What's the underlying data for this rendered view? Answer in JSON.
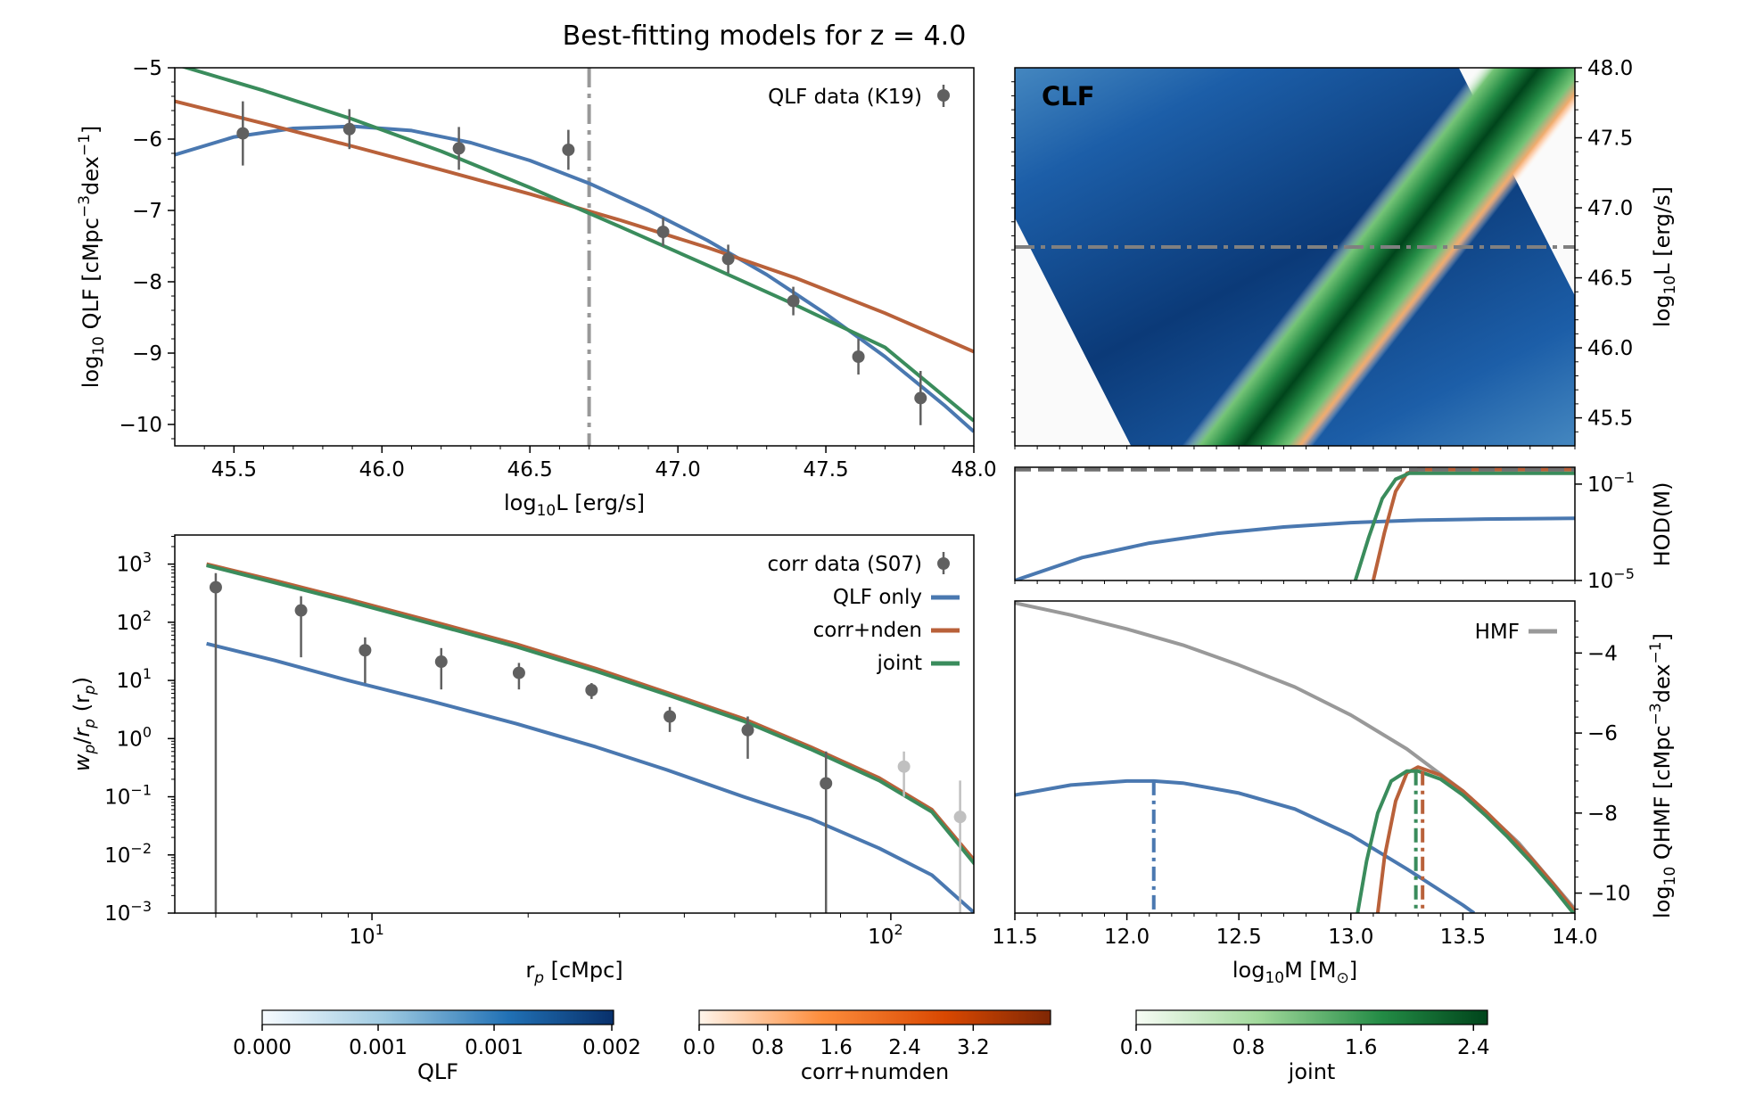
{
  "title": "Best-fitting models for z = 4.0",
  "colors": {
    "qlf_only": "#4a78b0",
    "corr_nden": "#b9613a",
    "joint": "#3a8c5c",
    "data": "#606060",
    "data_faint": "#c0c0c0",
    "hmf": "#999999",
    "ref_line": "#999999"
  },
  "chart_data": [
    {
      "id": "qlf",
      "type": "line",
      "xlabel": "log10L [erg/s]",
      "ylabel": "log10 QLF [cMpc^-3 dex^-1]",
      "xlim": [
        45.3,
        48.0
      ],
      "ylim": [
        -10.3,
        -5.0
      ],
      "xticks": [
        "45.5",
        "46.0",
        "46.5",
        "47.0",
        "47.5",
        "48.0"
      ],
      "yticks": [
        "−5",
        "−6",
        "−7",
        "−8",
        "−9",
        "−10"
      ],
      "vline": 46.7,
      "legend": [
        "QLF data (K19)"
      ],
      "data_points": [
        {
          "x": 45.53,
          "y": -5.92,
          "err": 0.45
        },
        {
          "x": 45.89,
          "y": -5.86,
          "err": 0.28
        },
        {
          "x": 46.26,
          "y": -6.13,
          "err": 0.3
        },
        {
          "x": 46.63,
          "y": -6.15,
          "err": 0.28
        },
        {
          "x": 46.95,
          "y": -7.3,
          "err": 0.2
        },
        {
          "x": 47.17,
          "y": -7.68,
          "err": 0.2
        },
        {
          "x": 47.39,
          "y": -8.27,
          "err": 0.2
        },
        {
          "x": 47.61,
          "y": -9.05,
          "err": 0.25
        },
        {
          "x": 47.82,
          "y": -9.63,
          "err": 0.38
        }
      ],
      "series": [
        {
          "key": "qlf_only",
          "x": [
            45.3,
            45.5,
            45.7,
            45.9,
            46.1,
            46.3,
            46.5,
            46.7,
            46.9,
            47.1,
            47.3,
            47.5,
            47.7,
            47.9,
            48.0
          ],
          "y": [
            -6.22,
            -5.97,
            -5.85,
            -5.82,
            -5.88,
            -6.05,
            -6.3,
            -6.62,
            -7.0,
            -7.42,
            -7.9,
            -8.45,
            -9.05,
            -9.73,
            -10.1
          ]
        },
        {
          "key": "corr_nden",
          "x": [
            45.3,
            45.6,
            45.9,
            46.2,
            46.5,
            46.8,
            47.1,
            47.4,
            47.7,
            48.0
          ],
          "y": [
            -5.47,
            -5.78,
            -6.1,
            -6.43,
            -6.77,
            -7.13,
            -7.52,
            -7.95,
            -8.44,
            -8.98
          ]
        },
        {
          "key": "joint",
          "x": [
            45.3,
            45.6,
            45.9,
            46.2,
            46.5,
            46.8,
            47.1,
            47.4,
            47.7,
            48.0
          ],
          "y": [
            -4.95,
            -5.32,
            -5.72,
            -6.17,
            -6.68,
            -7.22,
            -7.77,
            -8.33,
            -8.92,
            -9.95
          ]
        }
      ]
    },
    {
      "id": "clf",
      "type": "heatmap",
      "label": "CLF",
      "xlim": [
        11.5,
        14.0
      ],
      "ylim": [
        45.3,
        48.0
      ],
      "ylabel": "log10L [erg/s]",
      "yticks": [
        "45.5",
        "46.0",
        "46.5",
        "47.0",
        "47.5",
        "48.0"
      ],
      "hline": 46.7
    },
    {
      "id": "hod",
      "type": "line",
      "ylabel": "HOD(M)",
      "ylim_log": [
        -5,
        -0.3
      ],
      "yticks": [
        "10−1",
        "10−5"
      ],
      "series": [
        {
          "key": "qlf_only",
          "x": [
            11.5,
            11.8,
            12.1,
            12.4,
            12.7,
            13.0,
            13.3,
            13.6,
            14.0
          ],
          "log_y": [
            -5.0,
            -4.05,
            -3.45,
            -3.05,
            -2.78,
            -2.6,
            -2.5,
            -2.45,
            -2.42
          ]
        },
        {
          "key": "corr_nden",
          "x": [
            13.1,
            13.15,
            13.2,
            13.25,
            13.3,
            13.4,
            14.0
          ],
          "log_y": [
            -5.0,
            -3.0,
            -1.3,
            -0.55,
            -0.4,
            -0.4,
            -0.4
          ]
        },
        {
          "key": "joint",
          "x": [
            13.02,
            13.08,
            13.14,
            13.2,
            13.26,
            13.35,
            14.0
          ],
          "log_y": [
            -5.0,
            -3.2,
            -1.6,
            -0.8,
            -0.55,
            -0.55,
            -0.55
          ]
        },
        {
          "key": "hmf",
          "dashed": true,
          "x": [
            11.5,
            14.0
          ],
          "log_y": [
            -0.4,
            -0.4
          ]
        }
      ]
    },
    {
      "id": "qhmf",
      "type": "line",
      "xlabel": "log10M [M⊙]",
      "ylabel": "log10 QHMF [cMpc^-3 dex^-1]",
      "xlim": [
        11.5,
        14.0
      ],
      "ylim": [
        -10.5,
        -2.7
      ],
      "xticks": [
        "11.5",
        "12.0",
        "12.5",
        "13.0",
        "13.5",
        "14.0"
      ],
      "yticks": [
        "−4",
        "−6",
        "−8",
        "−10"
      ],
      "legend": [
        "HMF"
      ],
      "vlines": [
        {
          "key": "qlf_only",
          "x": 12.12
        },
        {
          "key": "corr_nden",
          "x": 13.32
        },
        {
          "key": "joint",
          "x": 13.29
        }
      ],
      "series": [
        {
          "key": "hmf",
          "x": [
            11.5,
            11.75,
            12.0,
            12.25,
            12.5,
            12.75,
            13.0,
            13.25,
            13.5,
            13.75,
            14.0
          ],
          "y": [
            -2.75,
            -3.05,
            -3.4,
            -3.8,
            -4.3,
            -4.85,
            -5.55,
            -6.4,
            -7.45,
            -8.75,
            -10.4
          ]
        },
        {
          "key": "qlf_only",
          "x": [
            11.5,
            11.75,
            12.0,
            12.12,
            12.25,
            12.5,
            12.75,
            13.0,
            13.25,
            13.5,
            13.55
          ],
          "y": [
            -7.55,
            -7.3,
            -7.2,
            -7.2,
            -7.25,
            -7.5,
            -7.9,
            -8.55,
            -9.4,
            -10.3,
            -10.5
          ]
        },
        {
          "key": "corr_nden",
          "x": [
            13.12,
            13.15,
            13.2,
            13.25,
            13.3,
            13.4,
            13.5,
            13.6,
            13.7,
            13.8,
            13.9,
            14.0
          ],
          "y": [
            -10.5,
            -9.1,
            -7.7,
            -7.0,
            -6.85,
            -7.05,
            -7.45,
            -7.95,
            -8.5,
            -9.1,
            -9.75,
            -10.45
          ]
        },
        {
          "key": "joint",
          "x": [
            13.03,
            13.07,
            13.12,
            13.18,
            13.25,
            13.3,
            13.4,
            13.5,
            13.6,
            13.7,
            13.8,
            13.9,
            14.0
          ],
          "y": [
            -10.5,
            -9.2,
            -8.0,
            -7.2,
            -6.95,
            -6.95,
            -7.15,
            -7.55,
            -8.05,
            -8.6,
            -9.2,
            -9.85,
            -10.55
          ]
        }
      ]
    },
    {
      "id": "corr",
      "type": "line",
      "xlabel": "rp [cMpc]",
      "ylabel": "wp/rp (rp)",
      "xlim_log": [
        0.62,
        2.16
      ],
      "ylim_log": [
        -3,
        3.5
      ],
      "xticks": [
        "10^1",
        "10^2"
      ],
      "yticks": [
        "10^3",
        "10^2",
        "10^1",
        "10^0",
        "10^-1",
        "10^-2",
        "10^-3"
      ],
      "legend": [
        "corr data (S07)",
        "QLF only",
        "corr+nden",
        "joint"
      ],
      "data_points": [
        {
          "x": 5.0,
          "y": 400,
          "lo": 0.001,
          "hi": 700
        },
        {
          "x": 7.3,
          "y": 160,
          "lo": 25,
          "hi": 280
        },
        {
          "x": 9.7,
          "y": 33,
          "lo": 9,
          "hi": 55
        },
        {
          "x": 13.6,
          "y": 21,
          "lo": 7,
          "hi": 36
        },
        {
          "x": 19.2,
          "y": 13.5,
          "lo": 7,
          "hi": 20
        },
        {
          "x": 26.5,
          "y": 6.8,
          "lo": 4.8,
          "hi": 9
        },
        {
          "x": 37.5,
          "y": 2.4,
          "lo": 1.3,
          "hi": 3.5
        },
        {
          "x": 53.0,
          "y": 1.4,
          "lo": 0.45,
          "hi": 2.4
        },
        {
          "x": 75.0,
          "y": 0.17,
          "lo": 0.001,
          "hi": 0.6
        },
        {
          "x": 106.0,
          "y": 0.33,
          "lo": 0.1,
          "hi": 0.6,
          "faint": true
        },
        {
          "x": 136.0,
          "y": 0.045,
          "lo": 0.001,
          "hi": 0.19,
          "faint": true
        }
      ],
      "series": [
        {
          "key": "qlf_only",
          "x": [
            4.8,
            6.5,
            9,
            13,
            19,
            27,
            37,
            52,
            70,
            95,
            120,
            145
          ],
          "y": [
            43,
            22,
            10,
            4.4,
            1.8,
            0.72,
            0.29,
            0.1,
            0.042,
            0.013,
            0.0045,
            0.001
          ]
        },
        {
          "key": "corr_nden",
          "x": [
            4.8,
            6.5,
            9,
            13,
            19,
            27,
            37,
            52,
            70,
            95,
            120,
            145
          ],
          "y": [
            1000,
            520,
            250,
            105,
            42,
            16,
            6.2,
            2.2,
            0.72,
            0.21,
            0.06,
            0.008
          ]
        },
        {
          "key": "joint",
          "x": [
            4.8,
            6.5,
            9,
            13,
            19,
            27,
            37,
            52,
            70,
            95,
            120,
            145
          ],
          "y": [
            950,
            480,
            230,
            95,
            38,
            14.5,
            5.7,
            2.0,
            0.66,
            0.19,
            0.055,
            0.007
          ]
        }
      ]
    }
  ],
  "colorbars": [
    {
      "label": "QLF",
      "ticks": [
        "0.000",
        "0.001",
        "0.001",
        "0.002"
      ],
      "from": "#f7fbff",
      "to": "#08306b"
    },
    {
      "label": "corr+numden",
      "ticks": [
        "0.0",
        "0.8",
        "1.6",
        "2.4",
        "3.2"
      ],
      "from": "#fff5eb",
      "to": "#7f2704"
    },
    {
      "label": "joint",
      "ticks": [
        "0.0",
        "0.8",
        "1.6",
        "2.4"
      ],
      "from": "#f7fcf5",
      "to": "#00441b"
    }
  ]
}
